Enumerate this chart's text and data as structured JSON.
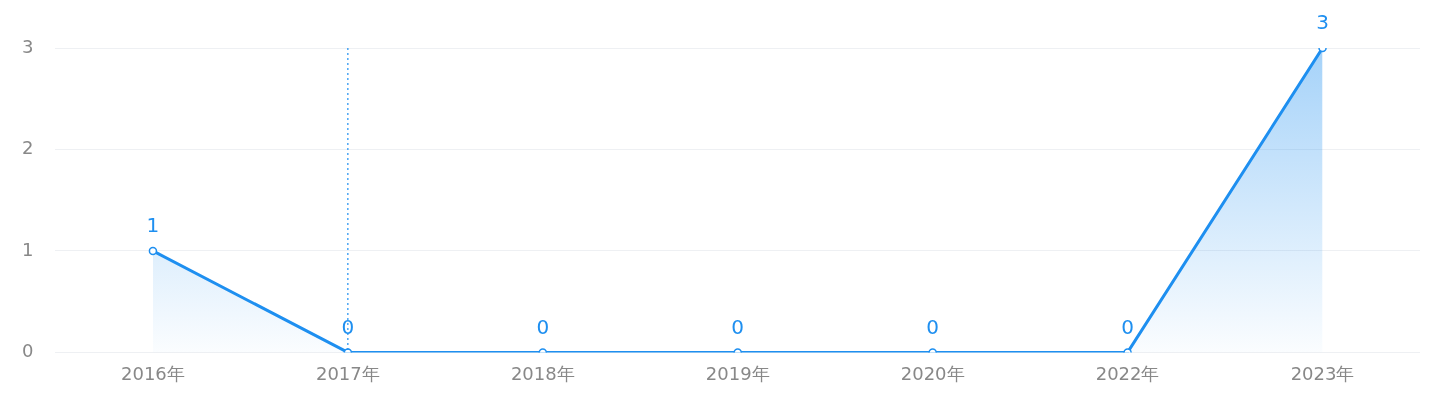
{
  "chart_data": {
    "type": "area",
    "categories": [
      "2016年",
      "2017年",
      "2018年",
      "2019年",
      "2020年",
      "2022年",
      "2023年"
    ],
    "series": [
      {
        "color": "#1e8ff0",
        "values": [
          1,
          0,
          0,
          0,
          0,
          0,
          3
        ]
      }
    ],
    "ylim": [
      0,
      3
    ],
    "yticks": [
      0,
      1,
      2,
      3
    ],
    "grid": "y",
    "legend": false,
    "marker": "circle",
    "data_labels": true,
    "ref_lines": [
      {
        "axis": "x",
        "value": "2017年",
        "color": "#1e8ff0",
        "line_style": "dotted"
      }
    ]
  }
}
